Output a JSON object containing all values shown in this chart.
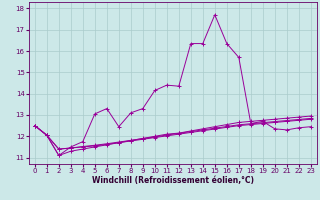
{
  "xlabel": "Windchill (Refroidissement éolien,°C)",
  "bg_color": "#cce8e8",
  "line_color": "#990099",
  "grid_color": "#aacccc",
  "xlim": [
    -0.5,
    23.5
  ],
  "ylim": [
    10.7,
    18.3
  ],
  "xticks": [
    0,
    1,
    2,
    3,
    4,
    5,
    6,
    7,
    8,
    9,
    10,
    11,
    12,
    13,
    14,
    15,
    16,
    17,
    18,
    19,
    20,
    21,
    22,
    23
  ],
  "yticks": [
    11,
    12,
    13,
    14,
    15,
    16,
    17,
    18
  ],
  "series_main": {
    "x": [
      0,
      1,
      2,
      3,
      4,
      5,
      6,
      7,
      8,
      9,
      10,
      11,
      12,
      13,
      14,
      15,
      16,
      17,
      18,
      19,
      20,
      21,
      22,
      23
    ],
    "y": [
      12.5,
      12.05,
      11.1,
      11.5,
      11.75,
      13.05,
      13.3,
      12.45,
      13.1,
      13.3,
      14.15,
      14.4,
      14.35,
      16.35,
      16.35,
      17.7,
      16.35,
      15.7,
      12.6,
      12.7,
      12.35,
      12.3,
      12.4,
      12.45
    ]
  },
  "series_flat1": {
    "x": [
      0,
      1,
      2,
      3,
      4,
      5,
      6,
      7,
      8,
      9,
      10,
      11,
      12,
      13,
      14,
      15,
      16,
      17,
      18,
      19,
      20,
      21,
      22,
      23
    ],
    "y": [
      12.5,
      12.05,
      11.1,
      11.3,
      11.4,
      11.5,
      11.6,
      11.7,
      11.8,
      11.9,
      12.0,
      12.1,
      12.15,
      12.25,
      12.35,
      12.45,
      12.55,
      12.65,
      12.7,
      12.75,
      12.8,
      12.85,
      12.9,
      12.95
    ]
  },
  "series_flat2": {
    "x": [
      0,
      1,
      2,
      3,
      4,
      5,
      6,
      7,
      8,
      9,
      10,
      11,
      12,
      13,
      14,
      15,
      16,
      17,
      18,
      19,
      20,
      21,
      22,
      23
    ],
    "y": [
      12.5,
      12.05,
      11.4,
      11.45,
      11.5,
      11.55,
      11.62,
      11.7,
      11.78,
      11.86,
      11.94,
      12.02,
      12.1,
      12.18,
      12.26,
      12.34,
      12.42,
      12.5,
      12.55,
      12.6,
      12.65,
      12.7,
      12.75,
      12.8
    ]
  },
  "series_flat3": {
    "x": [
      0,
      1,
      2,
      3,
      4,
      5,
      6,
      7,
      8,
      9,
      10,
      11,
      12,
      13,
      14,
      15,
      16,
      17,
      18,
      19,
      20,
      21,
      22,
      23
    ],
    "y": [
      12.5,
      12.05,
      11.4,
      11.45,
      11.52,
      11.58,
      11.65,
      11.73,
      11.81,
      11.89,
      11.97,
      12.06,
      12.14,
      12.22,
      12.3,
      12.38,
      12.46,
      12.54,
      12.59,
      12.64,
      12.69,
      12.74,
      12.79,
      12.84
    ]
  }
}
